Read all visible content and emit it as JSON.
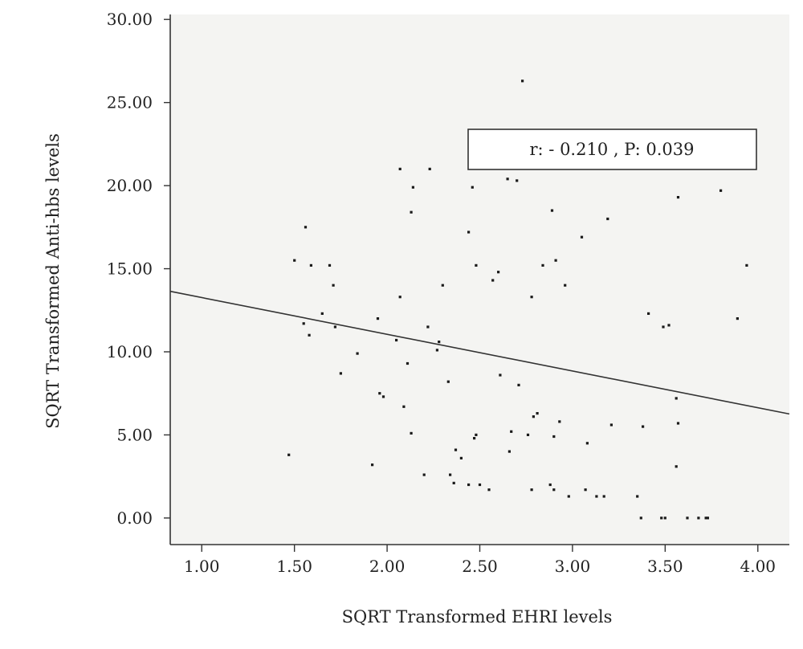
{
  "chart_data": {
    "type": "scatter",
    "title": "",
    "xlabel": "SQRT Transformed EHRI levels",
    "ylabel": "SQRT Transformed Anti-hbs levels",
    "xlim": [
      0.83,
      4.17
    ],
    "ylim": [
      -1.6,
      30.3
    ],
    "x_ticks": [
      "1.00",
      "1.50",
      "2.00",
      "2.50",
      "3.00",
      "3.50",
      "4.00"
    ],
    "y_ticks": [
      "0.00",
      "5.00",
      "10.00",
      "15.00",
      "20.00",
      "25.00",
      "30.00"
    ],
    "grid": false,
    "background": "#f4f4f2",
    "annotation": "r: - 0.210 , P: 0.039",
    "fit_line": {
      "x": [
        0.83,
        4.17
      ],
      "y": [
        13.64,
        6.26
      ]
    },
    "points": [
      [
        1.47,
        3.8
      ],
      [
        1.5,
        15.5
      ],
      [
        1.55,
        11.7
      ],
      [
        1.56,
        17.5
      ],
      [
        1.58,
        11.0
      ],
      [
        1.59,
        15.2
      ],
      [
        1.65,
        12.3
      ],
      [
        1.69,
        15.2
      ],
      [
        1.71,
        14.0
      ],
      [
        1.72,
        11.5
      ],
      [
        1.75,
        8.7
      ],
      [
        1.84,
        9.9
      ],
      [
        1.92,
        3.2
      ],
      [
        1.95,
        12.0
      ],
      [
        1.96,
        7.5
      ],
      [
        1.98,
        7.3
      ],
      [
        2.05,
        10.7
      ],
      [
        2.07,
        13.3
      ],
      [
        2.07,
        21.0
      ],
      [
        2.09,
        6.7
      ],
      [
        2.11,
        9.3
      ],
      [
        2.13,
        5.1
      ],
      [
        2.13,
        18.4
      ],
      [
        2.14,
        19.9
      ],
      [
        2.2,
        2.6
      ],
      [
        2.22,
        11.5
      ],
      [
        2.23,
        21.0
      ],
      [
        2.27,
        10.1
      ],
      [
        2.28,
        10.6
      ],
      [
        2.3,
        14.0
      ],
      [
        2.33,
        8.2
      ],
      [
        2.34,
        2.6
      ],
      [
        2.36,
        2.1
      ],
      [
        2.37,
        4.1
      ],
      [
        2.4,
        3.6
      ],
      [
        2.44,
        2.0
      ],
      [
        2.44,
        17.2
      ],
      [
        2.46,
        19.9
      ],
      [
        2.47,
        4.8
      ],
      [
        2.48,
        5.0
      ],
      [
        2.48,
        15.2
      ],
      [
        2.5,
        2.0
      ],
      [
        2.55,
        1.7
      ],
      [
        2.57,
        14.3
      ],
      [
        2.6,
        14.8
      ],
      [
        2.61,
        8.6
      ],
      [
        2.65,
        20.4
      ],
      [
        2.66,
        4.0
      ],
      [
        2.67,
        5.2
      ],
      [
        2.7,
        20.3
      ],
      [
        2.71,
        8.0
      ],
      [
        2.73,
        26.3
      ],
      [
        2.76,
        5.0
      ],
      [
        2.78,
        1.7
      ],
      [
        2.78,
        13.3
      ],
      [
        2.79,
        6.1
      ],
      [
        2.81,
        6.3
      ],
      [
        2.84,
        15.2
      ],
      [
        2.88,
        2.0
      ],
      [
        2.89,
        18.5
      ],
      [
        2.9,
        1.7
      ],
      [
        2.9,
        4.9
      ],
      [
        2.91,
        15.5
      ],
      [
        2.93,
        5.8
      ],
      [
        2.96,
        14.0
      ],
      [
        2.98,
        1.3
      ],
      [
        3.05,
        16.9
      ],
      [
        3.07,
        1.7
      ],
      [
        3.08,
        4.5
      ],
      [
        3.13,
        1.3
      ],
      [
        3.17,
        1.3
      ],
      [
        3.19,
        18.0
      ],
      [
        3.21,
        5.6
      ],
      [
        3.35,
        1.3
      ],
      [
        3.37,
        0.0
      ],
      [
        3.38,
        5.5
      ],
      [
        3.41,
        12.3
      ],
      [
        3.48,
        0.0
      ],
      [
        3.49,
        11.5
      ],
      [
        3.5,
        0.0
      ],
      [
        3.52,
        11.6
      ],
      [
        3.56,
        7.2
      ],
      [
        3.56,
        3.1
      ],
      [
        3.57,
        19.3
      ],
      [
        3.57,
        5.7
      ],
      [
        3.62,
        0.0
      ],
      [
        3.68,
        0.0
      ],
      [
        3.72,
        0.0
      ],
      [
        3.73,
        0.0
      ],
      [
        3.8,
        19.7
      ],
      [
        3.89,
        12.0
      ],
      [
        3.94,
        15.2
      ]
    ]
  }
}
